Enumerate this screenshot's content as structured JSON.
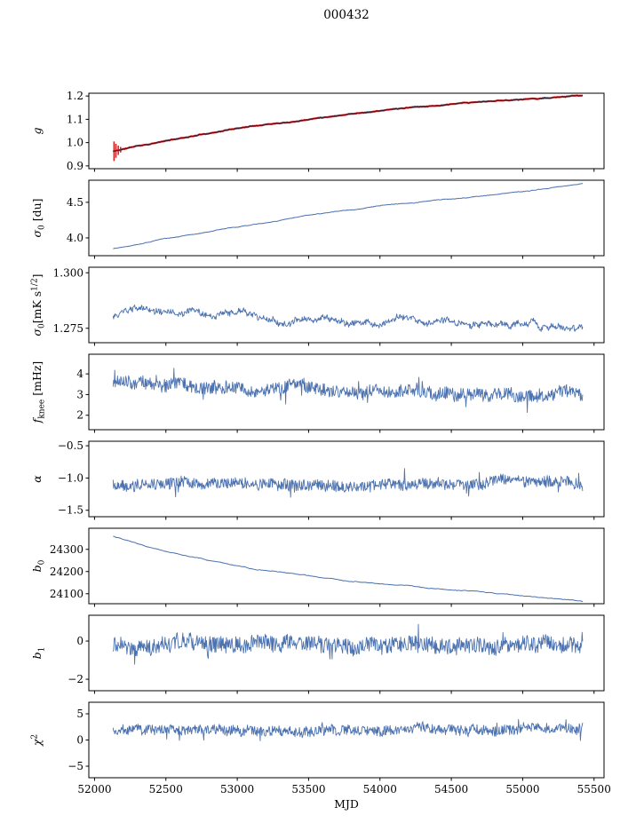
{
  "title": "000432",
  "chart_data": {
    "type": "line",
    "title": "000432",
    "xlabel": "MJD",
    "layout_hint": "8 vertically stacked time-series subplots sharing the x-axis; grid off; no legend; black spines; outward ticks",
    "xlim": [
      51960,
      55570
    ],
    "x_data_range": [
      52130,
      55420
    ],
    "xticks": {
      "values": [
        52000,
        52500,
        53000,
        53500,
        54000,
        54500,
        55000,
        55500
      ],
      "labels": [
        "52000",
        "52500",
        "53000",
        "53500",
        "54000",
        "54500",
        "55000",
        "55500"
      ]
    },
    "panels": [
      {
        "name": "g",
        "ylabel": "g",
        "ylim": [
          0.888,
          1.212
        ],
        "yticks": {
          "values": [
            0.9,
            1.0,
            1.1,
            1.2
          ],
          "labels": [
            "0.9",
            "1.0",
            "1.1",
            "1.2"
          ]
        },
        "series": [
          {
            "name": "g-errorbar-line",
            "color": "#d62728",
            "width": 2.2,
            "seed": 11,
            "n": 600,
            "trend": [
              [
                0,
                0.962
              ],
              [
                0.05,
                0.985
              ],
              [
                0.112,
                1.007
              ],
              [
                0.2,
                1.04
              ],
              [
                0.3,
                1.075
              ],
              [
                0.416,
                1.103
              ],
              [
                0.5,
                1.125
              ],
              [
                0.6,
                1.145
              ],
              [
                0.72,
                1.163
              ],
              [
                0.8,
                1.175
              ],
              [
                0.9,
                1.19
              ],
              [
                1,
                1.2
              ]
            ],
            "walk": 0.0008,
            "noise": 0.0008,
            "errorbars": [
              {
                "u": 0.002,
                "amp": 0.042
              },
              {
                "u": 0.006,
                "amp": 0.03
              },
              {
                "u": 0.011,
                "amp": 0.02
              },
              {
                "u": 0.016,
                "amp": 0.012
              }
            ]
          },
          {
            "name": "g-fit-line",
            "color": "#1a1a2e",
            "width": 0.9,
            "follows": 0
          }
        ]
      },
      {
        "name": "sigma0-du",
        "ylabel": "σ_{0} [du]",
        "ylim": [
          3.75,
          4.81
        ],
        "yticks": {
          "values": [
            4.0,
            4.5
          ],
          "labels": [
            "4.0",
            "4.5"
          ]
        },
        "series": [
          {
            "name": "sigma0-du-line",
            "color": "#4c72b0",
            "width": 1.0,
            "seed": 22,
            "n": 700,
            "trend": [
              [
                0,
                3.85
              ],
              [
                0.1,
                3.98
              ],
              [
                0.26,
                4.15
              ],
              [
                0.4,
                4.3
              ],
              [
                0.57,
                4.45
              ],
              [
                0.7,
                4.53
              ],
              [
                0.87,
                4.65
              ],
              [
                1,
                4.76
              ]
            ],
            "walk": 0.002,
            "noise": 0.003
          }
        ]
      },
      {
        "name": "sigma0-mks",
        "ylabel": "σ_{0}[mK s^{1/2}]",
        "ylim": [
          1.2685,
          1.3025
        ],
        "yticks": {
          "values": [
            1.275,
            1.3
          ],
          "labels": [
            "1.275",
            "1.300"
          ]
        },
        "series": [
          {
            "name": "sigma0-mks-line",
            "color": "#4c72b0",
            "width": 0.9,
            "seed": 33,
            "n": 850,
            "trend": [
              [
                0,
                1.28
              ],
              [
                0.05,
                1.2835
              ],
              [
                0.12,
                1.282
              ],
              [
                0.2,
                1.2805
              ],
              [
                0.3,
                1.2785
              ],
              [
                0.4,
                1.2775
              ],
              [
                0.5,
                1.277
              ],
              [
                0.6,
                1.2778
              ],
              [
                0.7,
                1.278
              ],
              [
                0.8,
                1.2778
              ],
              [
                0.9,
                1.2765
              ],
              [
                0.96,
                1.2745
              ],
              [
                1,
                1.2725
              ]
            ],
            "walk": 0.0006,
            "noise": 0.0011
          }
        ]
      },
      {
        "name": "fknee",
        "ylabel": "f_{knee} [mHz]",
        "ylim": [
          1.3,
          4.95
        ],
        "yticks": {
          "values": [
            2,
            3,
            4
          ],
          "labels": [
            "2",
            "3",
            "4"
          ]
        },
        "series": [
          {
            "name": "fknee-line",
            "color": "#4c72b0",
            "width": 0.9,
            "seed": 44,
            "n": 850,
            "trend": [
              [
                0,
                3.55
              ],
              [
                0.1,
                3.45
              ],
              [
                0.25,
                3.35
              ],
              [
                0.4,
                3.25
              ],
              [
                0.6,
                3.15
              ],
              [
                0.8,
                3.08
              ],
              [
                1,
                3.0
              ]
            ],
            "walk": 0.05,
            "noise": 0.3,
            "spike": {
              "prob": 0.03,
              "amp": 0.55,
              "neg": 0.5
            }
          }
        ]
      },
      {
        "name": "alpha",
        "ylabel": "α",
        "ylim": [
          -1.6,
          -0.43
        ],
        "yticks": {
          "values": [
            -0.5,
            -1.0,
            -1.5
          ],
          "labels": [
            "−0.5",
            "−1.0",
            "−1.5"
          ]
        },
        "series": [
          {
            "name": "alpha-line",
            "color": "#4c72b0",
            "width": 0.9,
            "seed": 55,
            "n": 850,
            "trend": [
              [
                0,
                -1.09
              ],
              [
                0.5,
                -1.11
              ],
              [
                1,
                -1.1
              ]
            ],
            "walk": 0.012,
            "noise": 0.085,
            "spike": {
              "prob": 0.012,
              "amp": 0.18,
              "neg": 0.5
            }
          }
        ]
      },
      {
        "name": "b0",
        "ylabel": "b_{0}",
        "ylim": [
          24055,
          24395
        ],
        "yticks": {
          "values": [
            24100,
            24200,
            24300
          ],
          "labels": [
            "24100",
            "24200",
            "24300"
          ]
        },
        "series": [
          {
            "name": "b0-line",
            "color": "#4c72b0",
            "width": 1.0,
            "seed": 66,
            "n": 700,
            "trend": [
              [
                0,
                24360
              ],
              [
                0.1,
                24300
              ],
              [
                0.2,
                24255
              ],
              [
                0.3,
                24215
              ],
              [
                0.4,
                24185
              ],
              [
                0.5,
                24160
              ],
              [
                0.6,
                24140
              ],
              [
                0.7,
                24120
              ],
              [
                0.8,
                24105
              ],
              [
                0.9,
                24085
              ],
              [
                1,
                24065
              ]
            ],
            "walk": 0.8,
            "noise": 0.7
          }
        ]
      },
      {
        "name": "b1",
        "ylabel": "b_{1}",
        "ylim": [
          -2.6,
          1.35
        ],
        "yticks": {
          "values": [
            0,
            -2
          ],
          "labels": [
            "0",
            "−2"
          ]
        },
        "series": [
          {
            "name": "b1-line",
            "color": "#4c72b0",
            "width": 0.9,
            "seed": 77,
            "n": 850,
            "trend": [
              [
                0,
                -0.15
              ],
              [
                1,
                -0.2
              ]
            ],
            "walk": 0.05,
            "noise": 0.42,
            "spike": {
              "prob": 0.02,
              "amp": 0.9,
              "neg": 0.75
            }
          }
        ]
      },
      {
        "name": "chi2",
        "ylabel": "χ^{2}",
        "ylim": [
          -7.2,
          7.2
        ],
        "yticks": {
          "values": [
            5,
            0,
            -5
          ],
          "labels": [
            "5",
            "0",
            "−5"
          ]
        },
        "series": [
          {
            "name": "chi2-line",
            "color": "#4c72b0",
            "width": 0.9,
            "seed": 88,
            "n": 850,
            "trend": [
              [
                0,
                1.9
              ],
              [
                0.5,
                2.0
              ],
              [
                1,
                2.2
              ]
            ],
            "walk": 0.12,
            "noise": 0.95,
            "spike": {
              "prob": 0.015,
              "amp": 1.5,
              "neg": 0.5
            }
          }
        ]
      }
    ]
  }
}
